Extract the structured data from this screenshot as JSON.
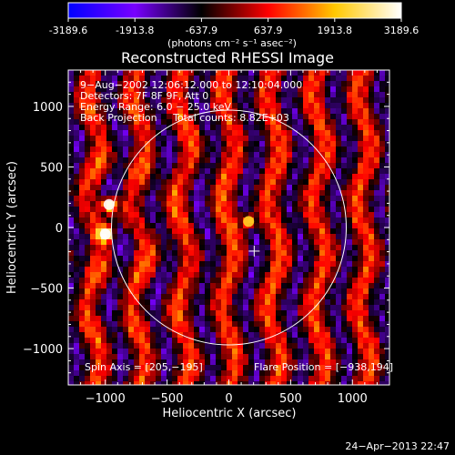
{
  "colorbar": {
    "tick_labels": [
      "-3189.6",
      "-1913.8",
      "-637.9",
      "637.9",
      "1913.8",
      "3189.6"
    ],
    "tick_values": [
      -3189.6,
      -1913.8,
      -637.9,
      637.9,
      1913.8,
      3189.6
    ],
    "range": [
      -3189.6,
      3189.6
    ],
    "units_label": "(photons cm⁻² s⁻¹ asec⁻²)",
    "colormap": [
      "#0000ff",
      "#7800ff",
      "#000000",
      "#ff0000",
      "#ffc800",
      "#ffffff"
    ]
  },
  "chart_data": {
    "type": "heatmap",
    "title": "Reconstructed RHESSI Image",
    "xlabel": "Heliocentric X (arcsec)",
    "ylabel": "Heliocentric Y (arcsec)",
    "xlim": [
      -1300,
      1300
    ],
    "ylim": [
      -1300,
      1300
    ],
    "x_ticks": [
      -1000,
      -500,
      0,
      500,
      1000
    ],
    "y_ticks": [
      -1000,
      -500,
      0,
      500,
      1000
    ],
    "x_tick_labels": [
      "−1000",
      "−500",
      "0",
      "500",
      "1000"
    ],
    "y_tick_labels": [
      "1000",
      "500",
      "0",
      "−500",
      "−1000"
    ],
    "solar_limb_radius": 950,
    "spin_axis": [
      205,
      -195
    ],
    "flare_position": [
      -938,
      194
    ],
    "bright_sources": [
      {
        "x": -970,
        "y": 190,
        "peak": 3189.6
      },
      {
        "x": -1000,
        "y": -55,
        "peak": 3189.6
      },
      {
        "x": 160,
        "y": 50,
        "peak": 2100
      }
    ],
    "annotations": [
      "9−Aug−2002 12:06:12.000 to 12:10:04.000",
      "Detectors: 7F 8F 9F, Att 0",
      "Energy Range: 6.0 − 25.0 keV",
      "Back Projection     Total counts: 8.82E+03",
      "Spin Axis = [205,−195]",
      "Flare Position = [−938,194]"
    ]
  },
  "footer": {
    "timestamp": "24−Apr−2013 22:47"
  }
}
